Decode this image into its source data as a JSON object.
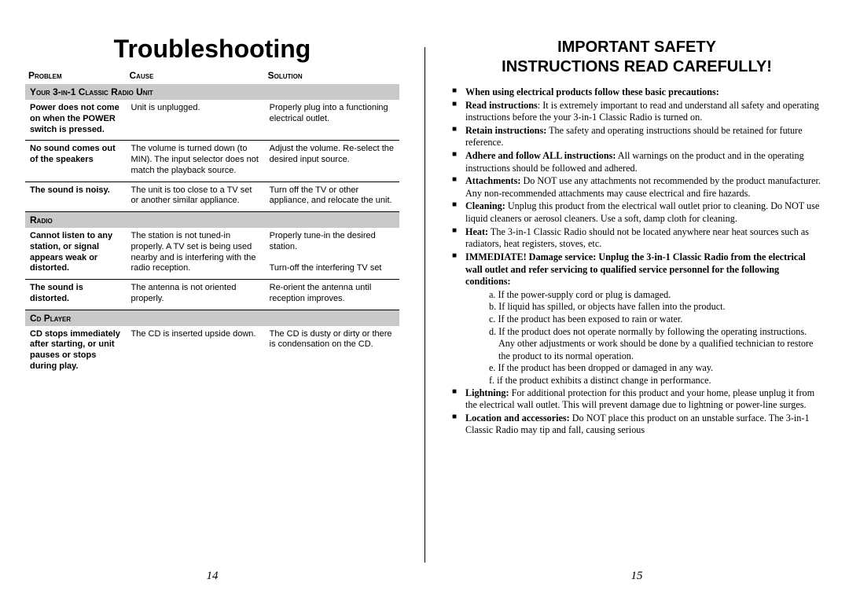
{
  "left": {
    "title": "Troubleshooting",
    "headers": [
      "Problem",
      "Cause",
      "Solution"
    ],
    "sections": [
      {
        "label": "Your 3-in-1 Classic Radio Unit",
        "rows": [
          {
            "problem": "Power does not come on when the POWER switch is pressed.",
            "cause": "Unit is unplugged.",
            "solution": "Properly plug into a functioning electrical outlet."
          },
          {
            "problem": "No sound comes out of the speakers",
            "cause": "The volume is turned down (to MIN). The input selector does not match the playback source.",
            "solution": "Adjust the volume. Re-select the desired input source."
          },
          {
            "problem": "The sound is noisy.",
            "cause": "The unit is too close to a TV set or another similar appliance.",
            "solution": "Turn off the TV or other appliance, and relocate the unit."
          }
        ]
      },
      {
        "label": "Radio",
        "rows": [
          {
            "problem": "Cannot listen to any station, or signal appears weak or distorted.",
            "cause": "The station is not tuned-in properly. A TV set is being used nearby and is interfering with the radio reception.",
            "solution": "Properly tune-in the desired station.\n\nTurn-off the interfering TV  set"
          },
          {
            "problem": "The sound is distorted.",
            "cause": "The antenna is not oriented properly.",
            "solution": "Re-orient the antenna until reception improves."
          }
        ]
      },
      {
        "label": "Cd Player",
        "rows": [
          {
            "problem": "CD stops immediately after starting, or unit pauses or stops during play.",
            "cause": "The CD is inserted upside down.",
            "solution": "The CD is dusty or dirty or there is condensation on the CD."
          }
        ]
      }
    ],
    "pagenum": "14"
  },
  "right": {
    "title_line1": "IMPORTANT SAFETY",
    "title_line2": "INSTRUCTIONS READ CAREFULLY!",
    "items": [
      {
        "bold": "When using electrical products follow these basic precautions:",
        "rest": ""
      },
      {
        "bold": "Read instructions",
        "rest": ": It is extremely important to read and understand all safety and operating instructions before the your 3-in-1 Classic Radio is turned on."
      },
      {
        "bold": "Retain instructions:",
        "rest": " The safety and operating instructions should be retained for future reference."
      },
      {
        "bold": "Adhere and follow ALL instructions:",
        "rest": " All warnings on the product and in the operating instructions should be followed and adhered."
      },
      {
        "bold": "Attachments:",
        "rest": " Do NOT use any attachments not recommended by the product manufacturer. Any non-recommended attachments may cause electrical and fire hazards."
      },
      {
        "bold": "Cleaning:",
        "rest": " Unplug this product from the electrical wall outlet prior to cleaning. Do NOT use liquid cleaners or aerosol cleaners. Use a soft, damp cloth for cleaning."
      },
      {
        "bold": "Heat:",
        "rest": " The 3-in-1 Classic Radio should not be located anywhere near heat sources such as radiators, heat registers, stoves, etc."
      },
      {
        "bold": "IMMEDIATE! Damage service: Unplug the 3-in-1 Classic Radio from the electrical wall outlet and refer servicing to qualified service personnel for the following conditions:",
        "rest": ""
      }
    ],
    "sub": [
      "a. If the power-supply cord or plug is damaged.",
      "b. If liquid has spilled, or objects have fallen into the product.",
      "c. If the product has been exposed to rain or water.",
      "d. If the product does not operate normally by following the operating instructions. Any other adjustments or work should be done by a qualified technician to restore the product to its normal operation.",
      "e. If the product has been dropped or damaged in any way.",
      "f. if the product exhibits a distinct change in performance."
    ],
    "items2": [
      {
        "bold": "Lightning:",
        "rest": " For additional protection for this product and your home, please unplug it from the electrical wall outlet. This will prevent damage due to lightning or power-line surges."
      },
      {
        "bold": "Location and accessories:",
        "rest": " Do NOT place this product on an unstable surface. The 3-in-1 Classic Radio may tip and fall, causing serious"
      }
    ],
    "pagenum": "15"
  }
}
